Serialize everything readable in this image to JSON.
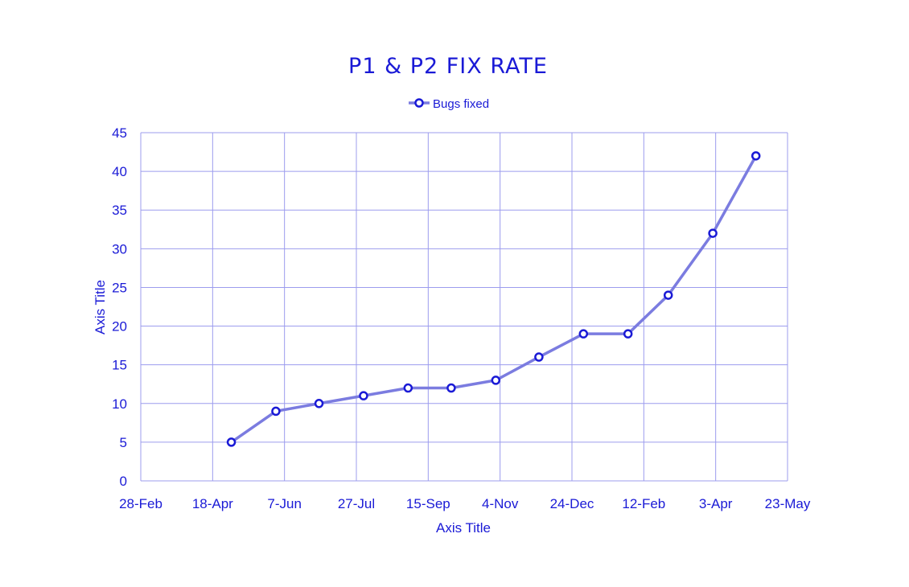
{
  "colors": {
    "text": "#1a1ad6",
    "grid": "#9c9cee",
    "line": "#7b7ce0",
    "marker_stroke": "#1a1ad6",
    "marker_fill": "#ffffff"
  },
  "chart_data": {
    "type": "line",
    "title": "P1 & P2 FIX RATE",
    "xlabel": "Axis Title",
    "ylabel": "Axis Title",
    "legend": {
      "position": "top-center",
      "entries": [
        "Bugs fixed"
      ]
    },
    "grid": true,
    "ylim": [
      0,
      45
    ],
    "y_ticks": [
      "0",
      "5",
      "10",
      "15",
      "20",
      "25",
      "30",
      "35",
      "40",
      "45"
    ],
    "x_ticks": [
      "28-Feb",
      "18-Apr",
      "7-Jun",
      "27-Jul",
      "15-Sep",
      "4-Nov",
      "24-Dec",
      "12-Feb",
      "3-Apr",
      "23-May"
    ],
    "series": [
      {
        "name": "Bugs fixed",
        "x": [
          "1-May",
          "1-Jun",
          "1-Jul",
          "1-Aug",
          "1-Sep",
          "1-Oct",
          "1-Nov",
          "1-Dec",
          "1-Jan",
          "1-Feb",
          "1-Mar",
          "1-Apr",
          "1-May"
        ],
        "values": [
          5,
          9,
          10,
          11,
          12,
          12,
          13,
          16,
          19,
          19,
          24,
          32,
          42
        ]
      }
    ]
  }
}
